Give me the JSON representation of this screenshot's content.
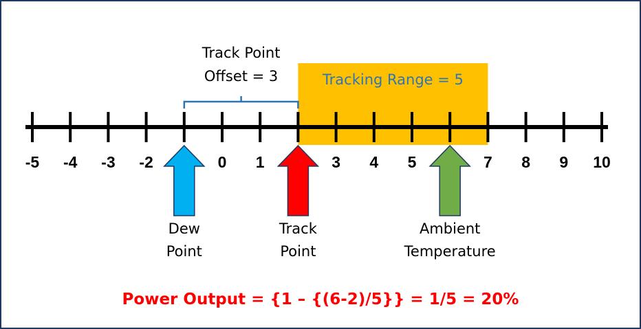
{
  "number_line": {
    "ticks": [
      "-5",
      "-4",
      "-3",
      "-2",
      "-1",
      "0",
      "1",
      "2",
      "3",
      "4",
      "5",
      "6",
      "7",
      "8",
      "9",
      "10"
    ],
    "tick_values": [
      -5,
      -4,
      -3,
      -2,
      -1,
      0,
      1,
      2,
      3,
      4,
      5,
      6,
      7,
      8,
      9,
      10
    ],
    "line_color": "#000000"
  },
  "offset_brace": {
    "label_line1": "Track Point",
    "label_line2": "Offset = 3",
    "from": -1,
    "to": 2,
    "color": "#2e75b6"
  },
  "tracking_range": {
    "label": "Tracking Range = 5",
    "from": 2,
    "to": 7,
    "fill": "#ffc000",
    "text_color": "#2e75b6"
  },
  "arrows": [
    {
      "id": "dew-point",
      "value": -1,
      "line1": "Dew",
      "line2": "Point",
      "fill": "#00b0f0"
    },
    {
      "id": "track-point",
      "value": 2,
      "line1": "Track",
      "line2": "Point",
      "fill": "#ff0000"
    },
    {
      "id": "ambient-temperature",
      "value": 6,
      "line1": "Ambient",
      "line2": "Temperature",
      "fill": "#70ad47"
    }
  ],
  "formula": {
    "text": "Power Output = {1 – {(6-2)/5}} = 1/5 = 20%",
    "color": "#ff0000"
  }
}
